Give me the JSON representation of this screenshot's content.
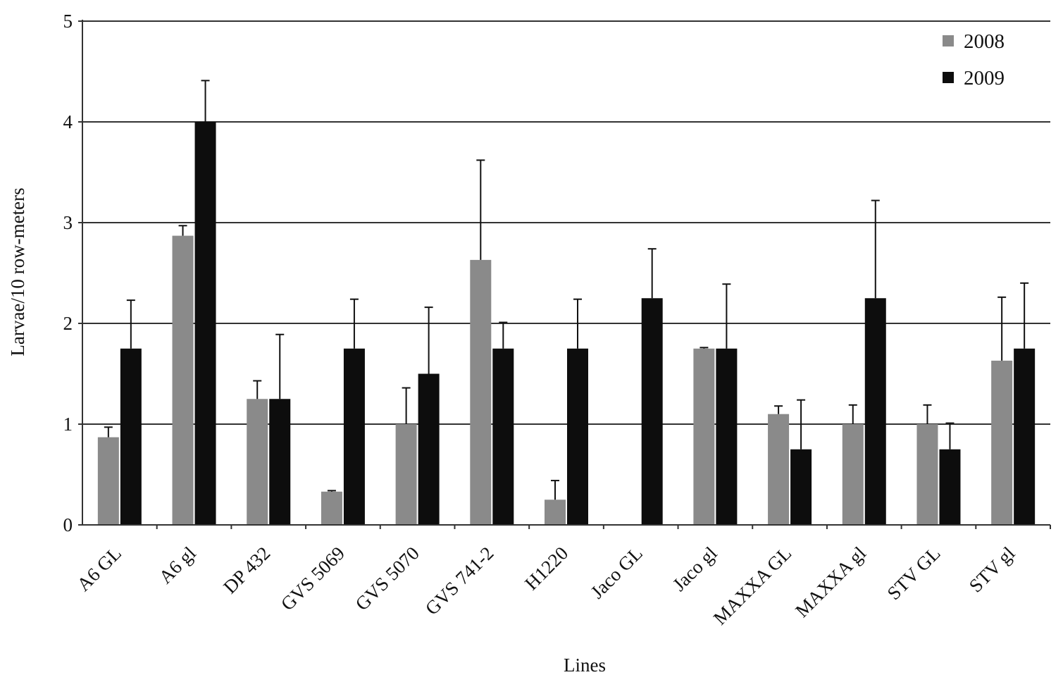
{
  "chart_data": {
    "type": "bar",
    "xlabel": "Lines",
    "ylabel": "Larvae/10 row-meters",
    "ylim": [
      0,
      5
    ],
    "yticks": [
      "0",
      "1",
      "2",
      "3",
      "4",
      "5"
    ],
    "grid": "horizontal",
    "legend_position": "top-right",
    "categories": [
      "A6 GL",
      "A6 gl",
      "DP 432",
      "GVS 5069",
      "GVS 5070",
      "GVS 741-2",
      "H1220",
      "Jaco GL",
      "Jaco gl",
      "MAXXA GL",
      "MAXXA gl",
      "STV GL",
      "STV gl"
    ],
    "series": [
      {
        "name": "2008",
        "color": "#8a8a8a",
        "values": [
          0.87,
          2.87,
          1.25,
          0.33,
          1.0,
          2.63,
          0.25,
          0,
          1.75,
          1.1,
          1.0,
          1.0,
          1.63
        ],
        "error": [
          0.1,
          0.1,
          0.18,
          0.01,
          0.36,
          0.99,
          0.19,
          0,
          0.01,
          0.08,
          0.19,
          0.19,
          0.63
        ]
      },
      {
        "name": "2009",
        "color": "#0d0d0d",
        "values": [
          1.75,
          4.0,
          1.25,
          1.75,
          1.5,
          1.75,
          1.75,
          2.25,
          1.75,
          0.75,
          2.25,
          0.75,
          1.75
        ],
        "error": [
          0.48,
          0.41,
          0.64,
          0.49,
          0.66,
          0.26,
          0.49,
          0.49,
          0.64,
          0.49,
          0.97,
          0.26,
          0.65
        ]
      }
    ]
  }
}
